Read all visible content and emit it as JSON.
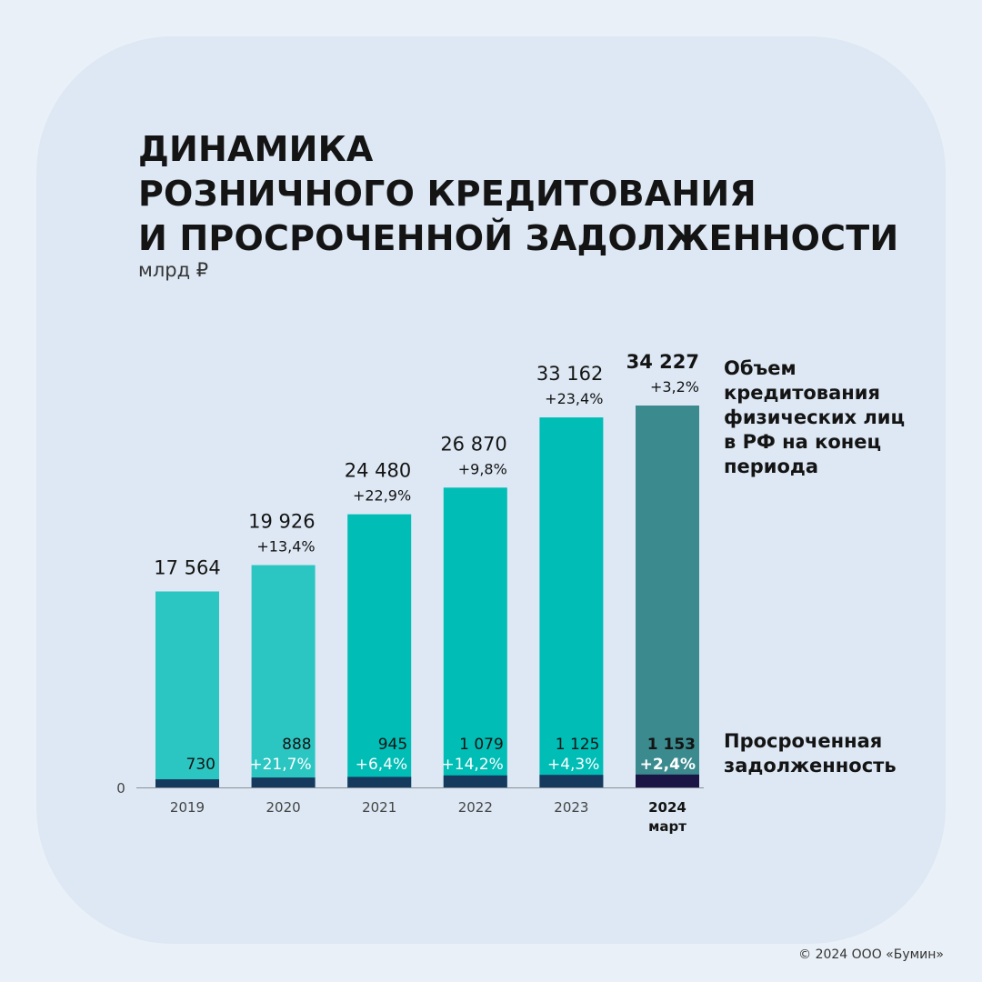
{
  "title_lines": [
    "ДИНАМИКА",
    "РОЗНИЧНОГО КРЕДИТОВАНИЯ",
    "И ПРОСРОЧЕННОЙ ЗАДОЛЖЕННОСТИ"
  ],
  "unit": "млрд ₽",
  "legend": {
    "volume_lines": [
      "Объем",
      "кредитования",
      "физических лиц",
      "в РФ на конец",
      "периода"
    ],
    "overdue_lines": [
      "Просроченная",
      "задолженность"
    ]
  },
  "copyright": "© 2024 ООО «Бумин»",
  "chart_data": {
    "type": "bar",
    "categories": [
      "2019",
      "2020",
      "2021",
      "2022",
      "2023",
      "2024"
    ],
    "category_sublabels": [
      "",
      "",
      "",
      "",
      "",
      "март"
    ],
    "zero_label": "0",
    "series": [
      {
        "values": [
          17564,
          19926,
          24480,
          26870,
          33162,
          34227
        ],
        "value_labels": [
          "17 564",
          "19 926",
          "24 480",
          "26 870",
          "33 162",
          "34 227"
        ],
        "growth_labels": [
          "",
          "+13,4%",
          "+22,9%",
          "+9,8%",
          "+23,4%",
          "+3,2%"
        ],
        "colors": [
          "#2cc6c2",
          "#2cc6c2",
          "#00bdb5",
          "#00bdb5",
          "#00bdb5",
          "#3a8a8e"
        ]
      },
      {
        "values": [
          730,
          888,
          945,
          1079,
          1125,
          1153
        ],
        "value_labels": [
          "730",
          "888",
          "945",
          "1 079",
          "1 125",
          "1 153"
        ],
        "growth_labels": [
          "",
          "+21,7%",
          "+6,4%",
          "+14,2%",
          "+4,3%",
          "+2,4%"
        ],
        "colors": [
          "#163a5e",
          "#163a5e",
          "#163a5e",
          "#163a5e",
          "#163a5e",
          "#1a1545"
        ]
      }
    ],
    "highlight_index": 5,
    "ylim": [
      0,
      34227
    ]
  }
}
